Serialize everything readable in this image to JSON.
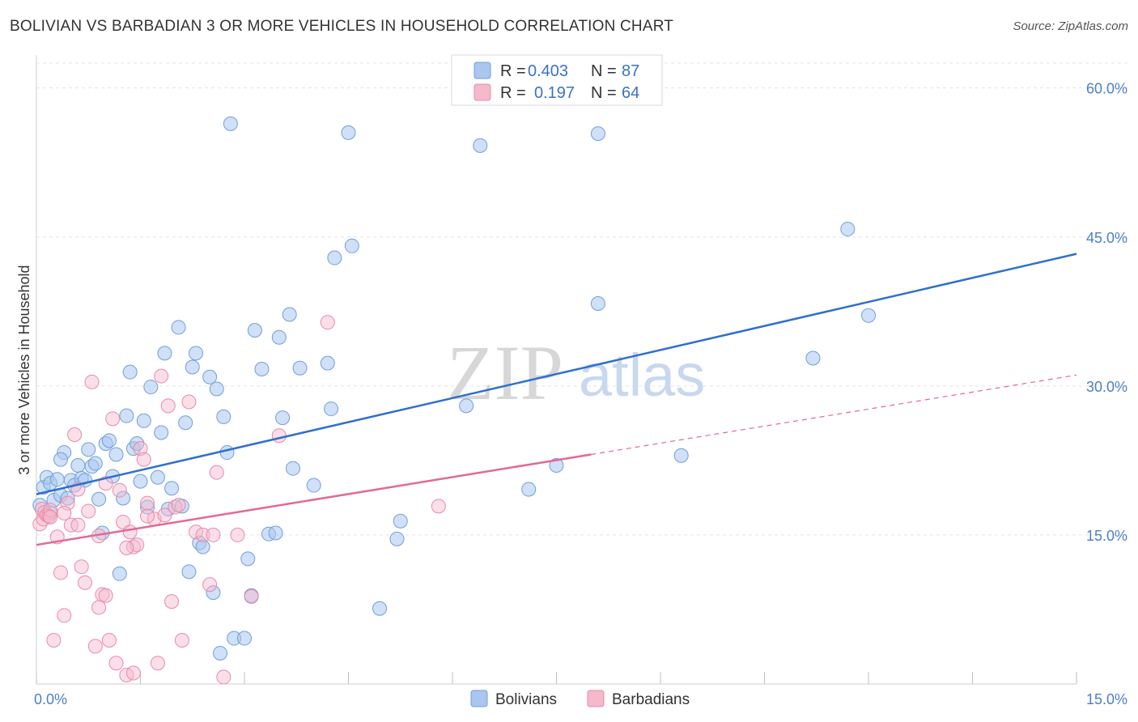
{
  "title": "BOLIVIAN VS BARBADIAN 3 OR MORE VEHICLES IN HOUSEHOLD CORRELATION CHART",
  "source": "Source: ZipAtlas.com",
  "watermark": {
    "zip": "ZIP",
    "atlas": "atlas"
  },
  "legend": {
    "r_label": "R =",
    "n_label": "N =",
    "rows": [
      {
        "r": "0.403",
        "n": "87",
        "color": "#a9c6ee"
      },
      {
        "r": "0.197",
        "n": "64",
        "color": "#f6b8cb"
      }
    ]
  },
  "bottom_legend": [
    {
      "name": "Bolivians",
      "color": "#a9c6ee"
    },
    {
      "name": "Barbadians",
      "color": "#f6b8cb"
    }
  ],
  "chart_data": {
    "type": "scatter",
    "title": "BOLIVIAN VS BARBADIAN 3 OR MORE VEHICLES IN HOUSEHOLD CORRELATION CHART",
    "xlabel": "",
    "ylabel": "3 or more Vehicles in Household",
    "xlim": [
      0,
      15
    ],
    "ylim": [
      0,
      62.5
    ],
    "x_tick_labels": [
      "0.0%",
      "15.0%"
    ],
    "y_ticks": [
      15,
      30,
      45,
      60
    ],
    "y_tick_labels": [
      "15.0%",
      "30.0%",
      "45.0%",
      "60.0%"
    ],
    "grid": true,
    "colors": {
      "bolivians": "#a9c6ee",
      "barbadians": "#f6b8cb",
      "bolivian_line": "#2f6fcf",
      "barbadian_line": "#e46893"
    },
    "series": [
      {
        "name": "Bolivians",
        "r": 0.403,
        "n": 87,
        "trend": {
          "x": [
            0,
            15
          ],
          "y": [
            19.1,
            43.3
          ]
        },
        "points": [
          [
            0.1,
            19.8
          ],
          [
            0.15,
            20.8
          ],
          [
            0.2,
            20.2
          ],
          [
            0.25,
            18.5
          ],
          [
            0.3,
            20.6
          ],
          [
            0.35,
            19.0
          ],
          [
            0.4,
            23.3
          ],
          [
            0.45,
            18.7
          ],
          [
            0.5,
            20.5
          ],
          [
            0.55,
            20.0
          ],
          [
            0.6,
            22.0
          ],
          [
            0.65,
            20.7
          ],
          [
            0.7,
            20.5
          ],
          [
            0.75,
            23.6
          ],
          [
            0.8,
            21.9
          ],
          [
            0.85,
            22.2
          ],
          [
            0.9,
            18.6
          ],
          [
            0.95,
            15.2
          ],
          [
            1.0,
            24.2
          ],
          [
            1.05,
            24.5
          ],
          [
            1.1,
            20.9
          ],
          [
            1.15,
            23.1
          ],
          [
            1.2,
            11.1
          ],
          [
            1.25,
            18.7
          ],
          [
            1.3,
            27.0
          ],
          [
            1.35,
            31.4
          ],
          [
            1.4,
            23.7
          ],
          [
            1.45,
            24.2
          ],
          [
            1.5,
            20.4
          ],
          [
            1.55,
            26.5
          ],
          [
            1.6,
            17.8
          ],
          [
            1.65,
            29.9
          ],
          [
            1.75,
            20.8
          ],
          [
            1.8,
            25.3
          ],
          [
            1.85,
            33.3
          ],
          [
            1.9,
            17.6
          ],
          [
            1.95,
            19.7
          ],
          [
            2.05,
            35.9
          ],
          [
            2.1,
            17.9
          ],
          [
            2.15,
            26.3
          ],
          [
            2.2,
            11.3
          ],
          [
            2.25,
            31.9
          ],
          [
            2.3,
            33.3
          ],
          [
            2.35,
            14.2
          ],
          [
            2.4,
            13.8
          ],
          [
            2.5,
            30.9
          ],
          [
            2.55,
            9.2
          ],
          [
            2.6,
            29.7
          ],
          [
            2.65,
            3.1
          ],
          [
            2.7,
            26.9
          ],
          [
            2.75,
            23.3
          ],
          [
            2.8,
            56.4
          ],
          [
            2.85,
            4.6
          ],
          [
            3.0,
            4.6
          ],
          [
            3.05,
            12.6
          ],
          [
            3.1,
            8.9
          ],
          [
            3.15,
            35.6
          ],
          [
            3.25,
            31.7
          ],
          [
            3.35,
            15.1
          ],
          [
            3.45,
            15.2
          ],
          [
            3.5,
            34.9
          ],
          [
            3.55,
            26.8
          ],
          [
            3.65,
            37.2
          ],
          [
            3.7,
            21.7
          ],
          [
            3.8,
            31.8
          ],
          [
            4.0,
            20.0
          ],
          [
            4.2,
            32.3
          ],
          [
            4.25,
            27.7
          ],
          [
            4.3,
            42.9
          ],
          [
            4.5,
            55.5
          ],
          [
            4.55,
            44.1
          ],
          [
            4.95,
            7.6
          ],
          [
            5.2,
            14.6
          ],
          [
            5.25,
            16.4
          ],
          [
            6.2,
            28.0
          ],
          [
            6.4,
            54.2
          ],
          [
            7.1,
            19.6
          ],
          [
            7.5,
            22.0
          ],
          [
            8.1,
            55.4
          ],
          [
            8.1,
            38.3
          ],
          [
            9.3,
            23.0
          ],
          [
            11.2,
            32.8
          ],
          [
            11.7,
            45.8
          ],
          [
            12.0,
            37.1
          ],
          [
            0.05,
            18.0
          ],
          [
            0.2,
            17.2
          ],
          [
            0.35,
            22.6
          ]
        ]
      },
      {
        "name": "Barbadians",
        "r": 0.197,
        "n": 64,
        "trend": {
          "x": [
            0,
            8.0
          ],
          "y": [
            14.0,
            23.1
          ],
          "dashed_extension": {
            "x": [
              8.0,
              15
            ],
            "y": [
              23.1,
              31.1
            ]
          }
        },
        "points": [
          [
            0.05,
            16.1
          ],
          [
            0.08,
            17.6
          ],
          [
            0.1,
            16.6
          ],
          [
            0.12,
            17.3
          ],
          [
            0.15,
            17.0
          ],
          [
            0.18,
            16.9
          ],
          [
            0.2,
            17.5
          ],
          [
            0.25,
            4.4
          ],
          [
            0.3,
            14.8
          ],
          [
            0.35,
            11.2
          ],
          [
            0.4,
            6.9
          ],
          [
            0.45,
            18.2
          ],
          [
            0.5,
            16.0
          ],
          [
            0.55,
            25.1
          ],
          [
            0.6,
            16.0
          ],
          [
            0.65,
            11.8
          ],
          [
            0.7,
            10.2
          ],
          [
            0.75,
            17.4
          ],
          [
            0.8,
            30.4
          ],
          [
            0.85,
            3.8
          ],
          [
            0.9,
            7.7
          ],
          [
            0.95,
            9.0
          ],
          [
            1.0,
            20.2
          ],
          [
            1.05,
            4.4
          ],
          [
            1.1,
            26.7
          ],
          [
            1.15,
            2.1
          ],
          [
            1.2,
            19.5
          ],
          [
            1.25,
            16.3
          ],
          [
            1.3,
            0.9
          ],
          [
            1.35,
            15.3
          ],
          [
            1.4,
            13.8
          ],
          [
            1.45,
            14.0
          ],
          [
            1.5,
            23.7
          ],
          [
            1.55,
            22.6
          ],
          [
            1.6,
            18.2
          ],
          [
            1.7,
            16.6
          ],
          [
            1.75,
            2.1
          ],
          [
            1.8,
            31.0
          ],
          [
            1.85,
            17.0
          ],
          [
            1.9,
            28.0
          ],
          [
            1.95,
            8.3
          ],
          [
            2.0,
            17.8
          ],
          [
            2.05,
            18.0
          ],
          [
            2.1,
            4.4
          ],
          [
            2.2,
            28.4
          ],
          [
            2.3,
            15.3
          ],
          [
            2.4,
            15.0
          ],
          [
            2.5,
            10.0
          ],
          [
            2.6,
            21.3
          ],
          [
            2.7,
            0.7
          ],
          [
            2.9,
            15.0
          ],
          [
            3.1,
            8.8
          ],
          [
            3.5,
            25.0
          ],
          [
            4.2,
            36.4
          ],
          [
            5.8,
            17.9
          ],
          [
            0.4,
            17.2
          ],
          [
            1.0,
            8.9
          ],
          [
            0.6,
            19.6
          ],
          [
            1.3,
            13.7
          ],
          [
            0.2,
            16.8
          ],
          [
            0.9,
            14.9
          ],
          [
            1.6,
            16.9
          ],
          [
            2.55,
            15.0
          ],
          [
            1.4,
            1.1
          ]
        ]
      }
    ]
  }
}
